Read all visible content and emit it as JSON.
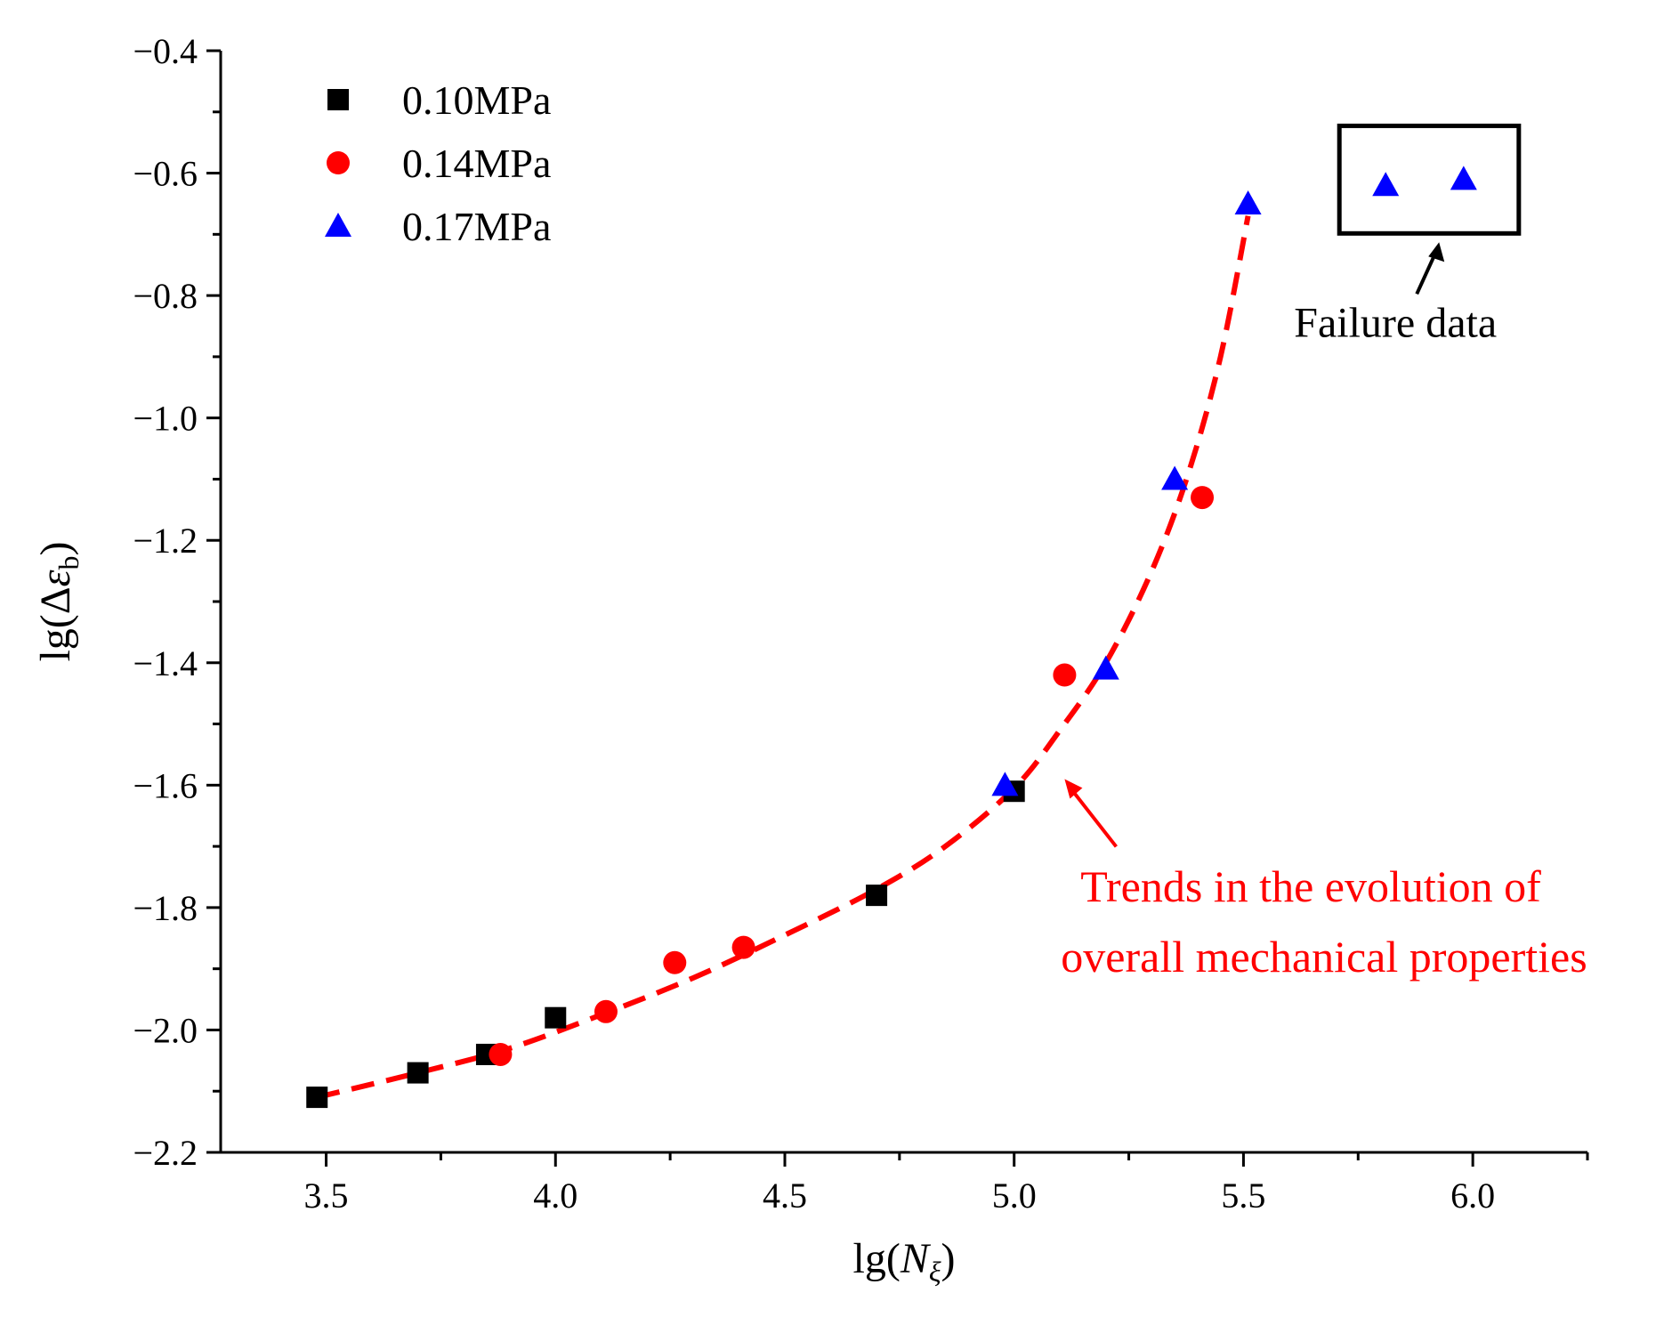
{
  "chart_data": {
    "type": "scatter",
    "title": "",
    "xlabel": {
      "prefix": "lg(",
      "symbol": "N",
      "subscript": "ξ",
      "suffix": ")"
    },
    "ylabel": {
      "prefix": "lg(Δ",
      "symbol": "ε",
      "subscript": "b",
      "suffix": ")"
    },
    "xlim": [
      3.27,
      6.25
    ],
    "ylim": [
      -2.2,
      -0.4
    ],
    "x_ticks": [
      {
        "value": 3.5,
        "label": "3.5"
      },
      {
        "value": 4.0,
        "label": "4.0"
      },
      {
        "value": 4.5,
        "label": "4.5"
      },
      {
        "value": 5.0,
        "label": "5.0"
      },
      {
        "value": 5.5,
        "label": "5.5"
      },
      {
        "value": 6.0,
        "label": "6.0"
      }
    ],
    "y_ticks": [
      {
        "value": -0.4,
        "label": "−0.4"
      },
      {
        "value": -0.6,
        "label": "−0.6"
      },
      {
        "value": -0.8,
        "label": "−0.8"
      },
      {
        "value": -1.0,
        "label": "−1.0"
      },
      {
        "value": -1.2,
        "label": "−1.2"
      },
      {
        "value": -1.4,
        "label": "−1.4"
      },
      {
        "value": -1.6,
        "label": "−1.6"
      },
      {
        "value": -1.8,
        "label": "−1.8"
      },
      {
        "value": -2.0,
        "label": "−2.0"
      },
      {
        "value": -2.2,
        "label": "−2.2"
      }
    ],
    "x_minor_step": 0.25,
    "y_minor_step": 0.1,
    "grid": false,
    "legend_position": "top-left",
    "series": [
      {
        "name": "0.10MPa",
        "marker": "square",
        "color": "#000000",
        "points": [
          {
            "x": 3.48,
            "y": -2.11
          },
          {
            "x": 3.7,
            "y": -2.07
          },
          {
            "x": 3.85,
            "y": -2.04
          },
          {
            "x": 4.0,
            "y": -1.98
          },
          {
            "x": 4.7,
            "y": -1.78
          },
          {
            "x": 5.0,
            "y": -1.61
          }
        ]
      },
      {
        "name": "0.14MPa",
        "marker": "circle",
        "color": "#ff0000",
        "points": [
          {
            "x": 3.88,
            "y": -2.04
          },
          {
            "x": 4.11,
            "y": -1.97
          },
          {
            "x": 4.26,
            "y": -1.89
          },
          {
            "x": 4.41,
            "y": -1.865
          },
          {
            "x": 5.11,
            "y": -1.42
          },
          {
            "x": 5.41,
            "y": -1.13
          }
        ]
      },
      {
        "name": "0.17MPa",
        "marker": "triangle",
        "color": "#0000ff",
        "points": [
          {
            "x": 4.98,
            "y": -1.6
          },
          {
            "x": 5.2,
            "y": -1.41
          },
          {
            "x": 5.35,
            "y": -1.1
          },
          {
            "x": 5.51,
            "y": -0.65
          },
          {
            "x": 5.81,
            "y": -0.62
          },
          {
            "x": 5.98,
            "y": -0.61
          }
        ]
      }
    ],
    "trend_line": {
      "style": "dashed",
      "color": "#ff0000",
      "points": [
        {
          "x": 3.48,
          "y": -2.11
        },
        {
          "x": 3.7,
          "y": -2.07
        },
        {
          "x": 3.9,
          "y": -2.03
        },
        {
          "x": 4.1,
          "y": -1.975
        },
        {
          "x": 4.3,
          "y": -1.915
        },
        {
          "x": 4.5,
          "y": -1.845
        },
        {
          "x": 4.7,
          "y": -1.77
        },
        {
          "x": 4.85,
          "y": -1.7
        },
        {
          "x": 5.0,
          "y": -1.605
        },
        {
          "x": 5.1,
          "y": -1.51
        },
        {
          "x": 5.2,
          "y": -1.4
        },
        {
          "x": 5.3,
          "y": -1.25
        },
        {
          "x": 5.38,
          "y": -1.09
        },
        {
          "x": 5.45,
          "y": -0.9
        },
        {
          "x": 5.51,
          "y": -0.67
        }
      ]
    },
    "annotations": [
      {
        "id": "failure",
        "text": "Failure data",
        "color": "#000000",
        "highlights_series": "0.17MPa",
        "highlights_points": [
          4,
          5
        ]
      },
      {
        "id": "trend",
        "lines": [
          "Trends in the evolution of",
          "overall mechanical properties"
        ],
        "color": "#ff0000"
      }
    ]
  }
}
